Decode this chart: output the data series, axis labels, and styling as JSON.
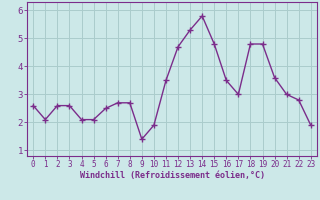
{
  "x": [
    0,
    1,
    2,
    3,
    4,
    5,
    6,
    7,
    8,
    9,
    10,
    11,
    12,
    13,
    14,
    15,
    16,
    17,
    18,
    19,
    20,
    21,
    22,
    23
  ],
  "y": [
    2.6,
    2.1,
    2.6,
    2.6,
    2.1,
    2.1,
    2.5,
    2.7,
    2.7,
    1.4,
    1.9,
    3.5,
    4.7,
    5.3,
    5.8,
    4.8,
    3.5,
    3.0,
    4.8,
    4.8,
    3.6,
    3.0,
    2.8,
    1.9
  ],
  "line_color": "#7b2d8b",
  "marker": "+",
  "markersize": 4,
  "linewidth": 1.0,
  "xlabel": "Windchill (Refroidissement éolien,°C)",
  "background_color": "#cce8e8",
  "grid_color": "#aacccc",
  "tick_color": "#7b2d8b",
  "label_color": "#7b2d8b",
  "ylim": [
    0.8,
    6.3
  ],
  "xlim": [
    -0.5,
    23.5
  ],
  "yticks": [
    1,
    2,
    3,
    4,
    5,
    6
  ],
  "xticks": [
    0,
    1,
    2,
    3,
    4,
    5,
    6,
    7,
    8,
    9,
    10,
    11,
    12,
    13,
    14,
    15,
    16,
    17,
    18,
    19,
    20,
    21,
    22,
    23
  ],
  "tick_fontsize": 5.5,
  "label_fontsize": 6.0,
  "ytick_fontsize": 6.5
}
